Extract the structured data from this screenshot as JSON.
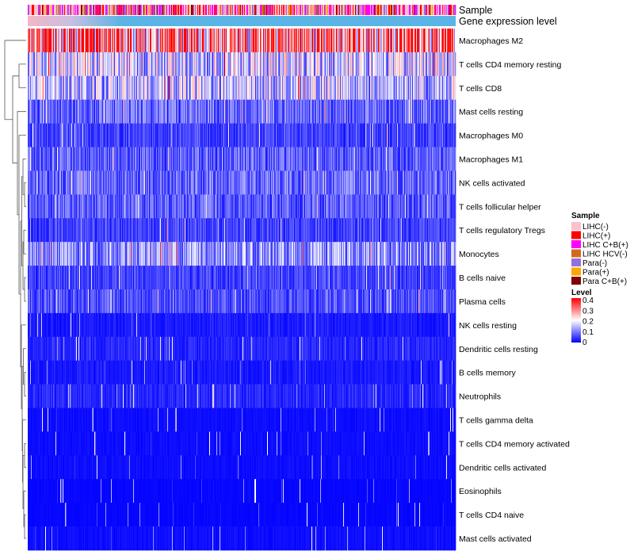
{
  "chart_data": {
    "type": "heatmap",
    "annotation_tracks": [
      "Sample",
      "Gene expression level"
    ],
    "rows": [
      {
        "label": "Macrophages M2",
        "mean": 0.3
      },
      {
        "label": "T cells CD4 memory resting",
        "mean": 0.16
      },
      {
        "label": "T cells CD8",
        "mean": 0.15
      },
      {
        "label": "Mast cells resting",
        "mean": 0.08
      },
      {
        "label": "Macrophages M0",
        "mean": 0.05
      },
      {
        "label": "Macrophages M1",
        "mean": 0.07
      },
      {
        "label": "NK cells activated",
        "mean": 0.08
      },
      {
        "label": "T cells follicular helper",
        "mean": 0.07
      },
      {
        "label": "T cells regulatory  Tregs",
        "mean": 0.05
      },
      {
        "label": "Monocytes",
        "mean": 0.11
      },
      {
        "label": "B cells naive",
        "mean": 0.05
      },
      {
        "label": "Plasma cells",
        "mean": 0.06
      },
      {
        "label": "NK cells resting",
        "mean": 0.02
      },
      {
        "label": "Dendritic cells resting",
        "mean": 0.03
      },
      {
        "label": "B cells memory",
        "mean": 0.02
      },
      {
        "label": "Neutrophils",
        "mean": 0.03
      },
      {
        "label": "T cells gamma delta",
        "mean": 0.01
      },
      {
        "label": "T cells CD4 memory activated",
        "mean": 0.01
      },
      {
        "label": "Dendritic cells activated",
        "mean": 0.01
      },
      {
        "label": "Eosinophils",
        "mean": 0.005
      },
      {
        "label": "T cells CD4 naive",
        "mean": 0.005
      },
      {
        "label": "Mast cells activated",
        "mean": 0.01
      }
    ],
    "columns": 540,
    "dendrogram": "rows, left",
    "legend": {
      "sample_title": "Sample",
      "sample_entries": [
        {
          "label": "LIHC(-)",
          "color": "#ffc0cb"
        },
        {
          "label": "LIHC(+)",
          "color": "#ff0000"
        },
        {
          "label": "LIHC C+B(+)",
          "color": "#ff00ff"
        },
        {
          "label": "LIHC HCV(-)",
          "color": "#d2691e"
        },
        {
          "label": "Para(-)",
          "color": "#9370db"
        },
        {
          "label": "Para(+)",
          "color": "#ffa500"
        },
        {
          "label": "Para C+B(+)",
          "color": "#800000"
        }
      ],
      "level_title": "Level",
      "level_ticks": [
        "0.4",
        "0.3",
        "0.2",
        "0.1",
        "0"
      ],
      "level_range": [
        0,
        0.4
      ],
      "level_colors": [
        "#0000ff",
        "#ffffff",
        "#ff0000"
      ]
    },
    "gene_expression_color": "#5ab4e5"
  }
}
